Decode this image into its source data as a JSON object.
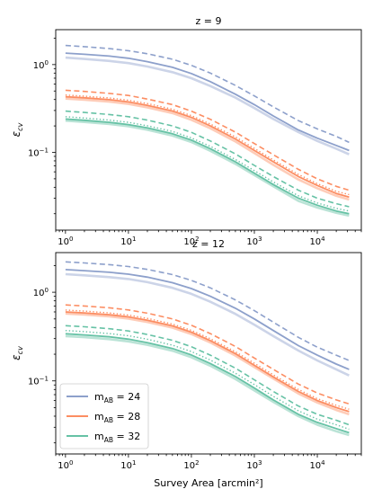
{
  "chart_data": [
    {
      "type": "line",
      "title": "z = 9",
      "xlabel": "",
      "ylabel": "ε_cv",
      "xscale": "log",
      "yscale": "log",
      "xlim": [
        0.7,
        50000
      ],
      "ylim": [
        0.013,
        2.5
      ],
      "x_tick_labels": [
        [
          "10",
          "0"
        ],
        [
          "10",
          "1"
        ],
        [
          "10",
          "2"
        ],
        [
          "10",
          "3"
        ],
        [
          "10",
          "4"
        ]
      ],
      "y_tick_labels": [
        [
          "10",
          "0"
        ],
        [
          "10",
          "−1"
        ]
      ],
      "x": [
        1,
        2,
        5,
        10,
        20,
        50,
        100,
        200,
        500,
        1000,
        2000,
        5000,
        10000,
        20000,
        32000
      ],
      "series": [
        {
          "color": "#8da0cb",
          "style": "solid",
          "values": [
            1.35,
            1.31,
            1.25,
            1.18,
            1.08,
            0.93,
            0.79,
            0.64,
            0.46,
            0.35,
            0.26,
            0.18,
            0.145,
            0.12,
            0.105
          ]
        },
        {
          "color": "#8da0cb",
          "style": "dashed",
          "values": [
            1.65,
            1.6,
            1.52,
            1.44,
            1.33,
            1.15,
            0.98,
            0.8,
            0.58,
            0.44,
            0.33,
            0.23,
            0.185,
            0.152,
            0.13
          ]
        },
        {
          "color": "#8da0cb",
          "style": "faint",
          "values": [
            1.2,
            1.16,
            1.1,
            1.04,
            0.95,
            0.82,
            0.7,
            0.57,
            0.42,
            0.32,
            0.24,
            0.17,
            0.135,
            0.11,
            0.095
          ]
        },
        {
          "color": "#fc8d62",
          "style": "solid",
          "values": [
            0.43,
            0.418,
            0.398,
            0.375,
            0.343,
            0.296,
            0.25,
            0.2,
            0.142,
            0.105,
            0.078,
            0.053,
            0.042,
            0.034,
            0.031
          ]
        },
        {
          "color": "#fc8d62",
          "style": "dashed",
          "values": [
            0.51,
            0.495,
            0.47,
            0.445,
            0.405,
            0.35,
            0.295,
            0.238,
            0.17,
            0.126,
            0.094,
            0.064,
            0.05,
            0.041,
            0.037
          ]
        },
        {
          "color": "#fc8d62",
          "style": "dotted",
          "values": [
            0.45,
            0.437,
            0.416,
            0.393,
            0.36,
            0.31,
            0.262,
            0.21,
            0.15,
            0.111,
            0.082,
            0.056,
            0.044,
            0.036,
            0.033
          ]
        },
        {
          "color": "#fc8d62",
          "style": "faint",
          "values": [
            0.41,
            0.398,
            0.378,
            0.356,
            0.325,
            0.28,
            0.235,
            0.188,
            0.133,
            0.098,
            0.072,
            0.049,
            0.039,
            0.032,
            0.029
          ]
        },
        {
          "color": "#66c2a5",
          "style": "solid",
          "values": [
            0.24,
            0.232,
            0.22,
            0.207,
            0.19,
            0.163,
            0.138,
            0.11,
            0.078,
            0.058,
            0.043,
            0.03,
            0.025,
            0.0215,
            0.02
          ]
        },
        {
          "color": "#66c2a5",
          "style": "dashed",
          "values": [
            0.295,
            0.285,
            0.27,
            0.255,
            0.233,
            0.2,
            0.169,
            0.135,
            0.096,
            0.071,
            0.053,
            0.037,
            0.03,
            0.026,
            0.024
          ]
        },
        {
          "color": "#66c2a5",
          "style": "dotted",
          "values": [
            0.255,
            0.246,
            0.233,
            0.22,
            0.201,
            0.173,
            0.146,
            0.117,
            0.083,
            0.062,
            0.046,
            0.032,
            0.0265,
            0.023,
            0.0215
          ]
        },
        {
          "color": "#66c2a5",
          "style": "faint",
          "values": [
            0.23,
            0.222,
            0.21,
            0.198,
            0.181,
            0.155,
            0.131,
            0.104,
            0.074,
            0.055,
            0.041,
            0.028,
            0.0235,
            0.0205,
            0.019
          ]
        }
      ]
    },
    {
      "type": "line",
      "title": "z = 12",
      "xlabel": "Survey Area [arcmin²]",
      "ylabel": "ε_cv",
      "xscale": "log",
      "yscale": "log",
      "xlim": [
        0.7,
        50000
      ],
      "ylim": [
        0.015,
        2.8
      ],
      "x_tick_labels": [
        [
          "10",
          "0"
        ],
        [
          "10",
          "1"
        ],
        [
          "10",
          "2"
        ],
        [
          "10",
          "3"
        ],
        [
          "10",
          "4"
        ]
      ],
      "y_tick_labels": [
        [
          "10",
          "0"
        ],
        [
          "10",
          "−1"
        ]
      ],
      "x": [
        1,
        2,
        5,
        10,
        20,
        50,
        100,
        200,
        500,
        1000,
        2000,
        5000,
        10000,
        20000,
        32000
      ],
      "series": [
        {
          "color": "#8da0cb",
          "style": "solid",
          "values": [
            1.8,
            1.75,
            1.68,
            1.6,
            1.48,
            1.28,
            1.1,
            0.9,
            0.66,
            0.5,
            0.37,
            0.25,
            0.195,
            0.155,
            0.135
          ]
        },
        {
          "color": "#8da0cb",
          "style": "dashed",
          "values": [
            2.2,
            2.14,
            2.05,
            1.95,
            1.81,
            1.58,
            1.36,
            1.12,
            0.82,
            0.62,
            0.46,
            0.31,
            0.24,
            0.195,
            0.17
          ]
        },
        {
          "color": "#8da0cb",
          "style": "faint",
          "values": [
            1.6,
            1.55,
            1.48,
            1.41,
            1.3,
            1.12,
            0.96,
            0.78,
            0.57,
            0.43,
            0.32,
            0.22,
            0.17,
            0.135,
            0.115
          ]
        },
        {
          "color": "#fc8d62",
          "style": "solid",
          "values": [
            0.6,
            0.585,
            0.558,
            0.527,
            0.483,
            0.418,
            0.355,
            0.285,
            0.203,
            0.15,
            0.111,
            0.076,
            0.06,
            0.05,
            0.045
          ]
        },
        {
          "color": "#fc8d62",
          "style": "dashed",
          "values": [
            0.72,
            0.7,
            0.668,
            0.632,
            0.58,
            0.5,
            0.425,
            0.342,
            0.245,
            0.181,
            0.135,
            0.092,
            0.073,
            0.061,
            0.055
          ]
        },
        {
          "color": "#fc8d62",
          "style": "dotted",
          "values": [
            0.63,
            0.613,
            0.585,
            0.553,
            0.507,
            0.438,
            0.372,
            0.299,
            0.213,
            0.158,
            0.117,
            0.08,
            0.063,
            0.053,
            0.048
          ]
        },
        {
          "color": "#fc8d62",
          "style": "faint",
          "values": [
            0.575,
            0.56,
            0.534,
            0.504,
            0.462,
            0.399,
            0.338,
            0.271,
            0.193,
            0.143,
            0.106,
            0.072,
            0.057,
            0.047,
            0.042
          ]
        },
        {
          "color": "#66c2a5",
          "style": "solid",
          "values": [
            0.34,
            0.33,
            0.314,
            0.296,
            0.27,
            0.232,
            0.196,
            0.157,
            0.112,
            0.083,
            0.061,
            0.042,
            0.034,
            0.029,
            0.026
          ]
        },
        {
          "color": "#66c2a5",
          "style": "dashed",
          "values": [
            0.42,
            0.408,
            0.388,
            0.366,
            0.334,
            0.287,
            0.243,
            0.195,
            0.139,
            0.103,
            0.076,
            0.052,
            0.042,
            0.036,
            0.032
          ]
        },
        {
          "color": "#66c2a5",
          "style": "dotted",
          "values": [
            0.37,
            0.36,
            0.342,
            0.323,
            0.295,
            0.253,
            0.214,
            0.172,
            0.122,
            0.091,
            0.067,
            0.046,
            0.037,
            0.032,
            0.0285
          ]
        },
        {
          "color": "#66c2a5",
          "style": "faint",
          "values": [
            0.32,
            0.311,
            0.296,
            0.279,
            0.255,
            0.219,
            0.185,
            0.148,
            0.105,
            0.078,
            0.058,
            0.04,
            0.032,
            0.027,
            0.0245
          ]
        }
      ]
    }
  ],
  "legend": {
    "placement": "lower-left of bottom panel",
    "entries": [
      {
        "label_prefix": "m",
        "label_sub": "AB",
        "label_suffix": " = 24",
        "color": "#8da0cb"
      },
      {
        "label_prefix": "m",
        "label_sub": "AB",
        "label_suffix": " = 28",
        "color": "#fc8d62"
      },
      {
        "label_prefix": "m",
        "label_sub": "AB",
        "label_suffix": " = 32",
        "color": "#66c2a5"
      }
    ]
  }
}
